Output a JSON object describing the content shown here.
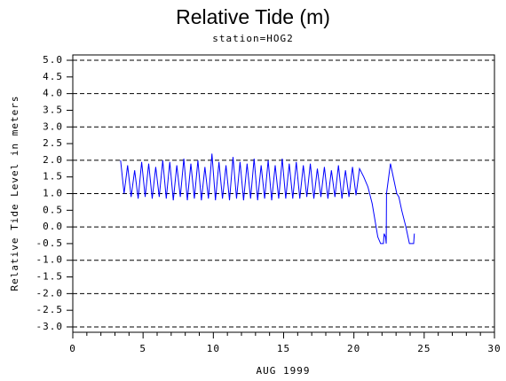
{
  "chart_data": {
    "type": "line",
    "title": "Relative Tide (m)",
    "subtitle": "station=HOG2",
    "y_label": "Relative Tide Level in meters",
    "x_label": "AUG 1999",
    "color": "#0000ff",
    "xlim": [
      0,
      30
    ],
    "xticks": [
      0,
      5,
      10,
      15,
      20,
      25,
      30
    ],
    "xminorticks": [
      1,
      2,
      3,
      4,
      6,
      7,
      8,
      9,
      11,
      12,
      13,
      14,
      16,
      17,
      18,
      19,
      21,
      22,
      23,
      24,
      26,
      27,
      28,
      29
    ],
    "ylim": [
      -3.16,
      5.16
    ],
    "yticks": [
      {
        "value": 5,
        "label": "5.0"
      },
      {
        "value": 4.5,
        "label": "4.5"
      },
      {
        "value": 4,
        "label": "4.0"
      },
      {
        "value": 3.5,
        "label": "3.5"
      },
      {
        "value": 3,
        "label": "3.0"
      },
      {
        "value": 2.5,
        "label": "2.5"
      },
      {
        "value": 2,
        "label": "2.0"
      },
      {
        "value": 1.5,
        "label": "1.5"
      },
      {
        "value": 1,
        "label": "1.0"
      },
      {
        "value": 0.5,
        "label": "0.5"
      },
      {
        "value": 0,
        "label": "0.0"
      },
      {
        "value": -0.5,
        "label": "-0.5"
      },
      {
        "value": -1,
        "label": "-1.0"
      },
      {
        "value": -1.5,
        "label": "-1.5"
      },
      {
        "value": -2,
        "label": "-2.0"
      },
      {
        "value": -2.5,
        "label": "-2.5"
      },
      {
        "value": -3,
        "label": "-3.0"
      }
    ],
    "grid": "dashed",
    "x": [
      3.4,
      3.65,
      3.9,
      4.15,
      4.4,
      4.65,
      4.9,
      5.15,
      5.4,
      5.65,
      5.9,
      6.15,
      6.4,
      6.65,
      6.9,
      7.15,
      7.4,
      7.65,
      7.9,
      8.15,
      8.4,
      8.65,
      8.9,
      9.15,
      9.4,
      9.65,
      9.9,
      10.15,
      10.4,
      10.65,
      10.9,
      11.15,
      11.4,
      11.65,
      11.9,
      12.15,
      12.4,
      12.65,
      12.9,
      13.15,
      13.4,
      13.65,
      13.9,
      14.15,
      14.4,
      14.65,
      14.9,
      15.15,
      15.4,
      15.65,
      15.9,
      16.15,
      16.4,
      16.65,
      16.9,
      17.15,
      17.4,
      17.65,
      17.9,
      18.15,
      18.4,
      18.65,
      18.9,
      19.15,
      19.4,
      19.65,
      19.9,
      20.15,
      20.4,
      20.7,
      21.0,
      21.3,
      21.5,
      21.7,
      21.9,
      22.1,
      22.15,
      22.25,
      22.3,
      22.32,
      22.6,
      22.9,
      23.05,
      23.2,
      23.4,
      23.7,
      23.95,
      24.25,
      24.3
    ],
    "values": [
      2.0,
      1.0,
      1.85,
      0.9,
      1.7,
      0.85,
      1.95,
      0.9,
      1.9,
      0.85,
      1.8,
      0.9,
      2.0,
      0.85,
      1.95,
      0.8,
      1.85,
      0.9,
      2.05,
      0.8,
      1.9,
      0.85,
      2.0,
      0.8,
      1.8,
      0.85,
      2.2,
      0.8,
      1.95,
      0.85,
      1.85,
      0.8,
      2.1,
      0.85,
      1.95,
      0.8,
      1.9,
      0.85,
      2.05,
      0.8,
      1.85,
      0.85,
      2.0,
      0.8,
      1.85,
      0.85,
      2.05,
      0.85,
      1.9,
      0.85,
      1.95,
      0.85,
      1.85,
      0.9,
      1.9,
      0.85,
      1.75,
      0.9,
      1.8,
      0.85,
      1.7,
      0.9,
      1.85,
      0.85,
      1.7,
      0.9,
      1.8,
      0.95,
      1.75,
      1.5,
      1.2,
      0.7,
      0.2,
      -0.3,
      -0.5,
      -0.5,
      -0.2,
      -0.3,
      -0.5,
      1.0,
      1.9,
      1.3,
      1.0,
      0.9,
      0.5,
      0.0,
      -0.5,
      -0.5,
      -0.2
    ]
  }
}
